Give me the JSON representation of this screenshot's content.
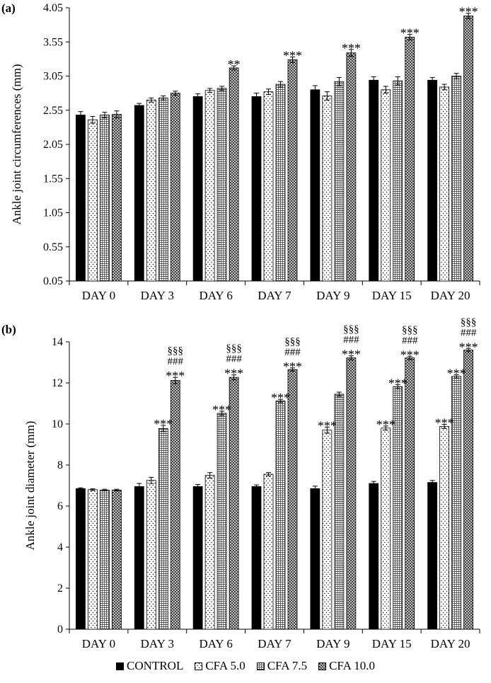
{
  "chart_data": [
    {
      "panel": "(a)",
      "type": "bar",
      "ylabel": "Ankle joint circumferences (mm)",
      "xlabel": "",
      "ylim": [
        0.05,
        4.05
      ],
      "yticks": [
        "0.05",
        "0.55",
        "1.05",
        "1.55",
        "2.05",
        "2.55",
        "3.05",
        "3.55",
        "4.05"
      ],
      "categories": [
        "DAY 0",
        "DAY 3",
        "DAY 6",
        "DAY 7",
        "DAY 9",
        "DAY 15",
        "DAY 20"
      ],
      "series": [
        {
          "name": "CONTROL",
          "values": [
            2.48,
            2.62,
            2.75,
            2.75,
            2.85,
            2.99,
            2.99
          ],
          "errors": [
            0.05,
            0.03,
            0.04,
            0.05,
            0.06,
            0.05,
            0.04
          ]
        },
        {
          "name": "CFA 5.0",
          "values": [
            2.41,
            2.7,
            2.84,
            2.82,
            2.76,
            2.85,
            2.89
          ],
          "errors": [
            0.05,
            0.03,
            0.03,
            0.04,
            0.06,
            0.05,
            0.04
          ]
        },
        {
          "name": "CFA 7.5",
          "values": [
            2.48,
            2.73,
            2.87,
            2.93,
            2.97,
            2.98,
            3.05
          ],
          "errors": [
            0.04,
            0.03,
            0.03,
            0.04,
            0.06,
            0.06,
            0.04
          ]
        },
        {
          "name": "CFA 10.0",
          "values": [
            2.49,
            2.8,
            3.17,
            3.29,
            3.39,
            3.62,
            3.93
          ],
          "errors": [
            0.05,
            0.03,
            0.03,
            0.04,
            0.05,
            0.04,
            0.04
          ]
        }
      ],
      "annotations": [
        {
          "category": "DAY 6",
          "series": "CFA 10.0",
          "lines": [
            "**"
          ]
        },
        {
          "category": "DAY 7",
          "series": "CFA 10.0",
          "lines": [
            "***"
          ]
        },
        {
          "category": "DAY 9",
          "series": "CFA 10.0",
          "lines": [
            "***"
          ]
        },
        {
          "category": "DAY 15",
          "series": "CFA 10.0",
          "lines": [
            "***"
          ]
        },
        {
          "category": "DAY 20",
          "series": "CFA 10.0",
          "lines": [
            "***"
          ]
        }
      ]
    },
    {
      "panel": "(b)",
      "type": "bar",
      "ylabel": "Ankle joint diameter (mm)",
      "xlabel": "",
      "ylim": [
        0,
        14
      ],
      "yticks": [
        "0",
        "2",
        "4",
        "6",
        "8",
        "10",
        "12",
        "14"
      ],
      "categories": [
        "DAY 0",
        "DAY 3",
        "DAY 6",
        "DAY 7",
        "DAY 9",
        "DAY 15",
        "DAY 20"
      ],
      "series": [
        {
          "name": "CONTROL",
          "values": [
            6.85,
            6.95,
            6.95,
            6.95,
            6.85,
            7.1,
            7.15
          ],
          "errors": [
            0.04,
            0.15,
            0.1,
            0.08,
            0.12,
            0.1,
            0.1
          ]
        },
        {
          "name": "CFA 5.0",
          "values": [
            6.8,
            7.25,
            7.5,
            7.55,
            9.7,
            9.8,
            9.88
          ],
          "errors": [
            0.04,
            0.15,
            0.13,
            0.08,
            0.15,
            0.1,
            0.1
          ]
        },
        {
          "name": "CFA 7.5",
          "values": [
            6.78,
            9.78,
            10.52,
            11.12,
            11.45,
            11.82,
            12.32
          ],
          "errors": [
            0.04,
            0.15,
            0.1,
            0.08,
            0.1,
            0.1,
            0.08
          ]
        },
        {
          "name": "CFA 10.0",
          "values": [
            6.78,
            12.12,
            12.27,
            12.65,
            13.22,
            13.22,
            13.6
          ],
          "errors": [
            0.04,
            0.15,
            0.12,
            0.08,
            0.1,
            0.08,
            0.08
          ]
        }
      ],
      "annotations": [
        {
          "category": "DAY 3",
          "series": "CFA 7.5",
          "lines": [
            "***"
          ]
        },
        {
          "category": "DAY 3",
          "series": "CFA 10.0",
          "lines": [
            "***",
            "###",
            "§§§"
          ]
        },
        {
          "category": "DAY 6",
          "series": "CFA 7.5",
          "lines": [
            "***"
          ]
        },
        {
          "category": "DAY 6",
          "series": "CFA 10.0",
          "lines": [
            "***",
            "###",
            "§§§"
          ]
        },
        {
          "category": "DAY 7",
          "series": "CFA 7.5",
          "lines": [
            "***"
          ]
        },
        {
          "category": "DAY 7",
          "series": "CFA 10.0",
          "lines": [
            "***",
            "###",
            "§§§"
          ]
        },
        {
          "category": "DAY 9",
          "series": "CFA 5.0",
          "lines": [
            "***"
          ]
        },
        {
          "category": "DAY 9",
          "series": "CFA 10.0",
          "lines": [
            "***",
            "###",
            "§§§"
          ]
        },
        {
          "category": "DAY 15",
          "series": "CFA 5.0",
          "lines": [
            "***"
          ]
        },
        {
          "category": "DAY 15",
          "series": "CFA 7.5",
          "lines": [
            "***"
          ]
        },
        {
          "category": "DAY 15",
          "series": "CFA 10.0",
          "lines": [
            "***",
            "###",
            "§§§"
          ]
        },
        {
          "category": "DAY 20",
          "series": "CFA 5.0",
          "lines": [
            "***"
          ]
        },
        {
          "category": "DAY 20",
          "series": "CFA 7.5",
          "lines": [
            "***"
          ]
        },
        {
          "category": "DAY 20",
          "series": "CFA 10.0",
          "lines": [
            "***",
            "###",
            "§§§"
          ]
        }
      ]
    }
  ],
  "legend": [
    {
      "label": "CONTROL",
      "pattern": "solid"
    },
    {
      "label": "CFA 5.0",
      "pattern": "dots"
    },
    {
      "label": "CFA 7.5",
      "pattern": "fine-grid"
    },
    {
      "label": "CFA 10.0",
      "pattern": "crosshatch"
    }
  ],
  "colors": {
    "control": "#000000",
    "axis": "#000000",
    "background": "#ffffff"
  }
}
